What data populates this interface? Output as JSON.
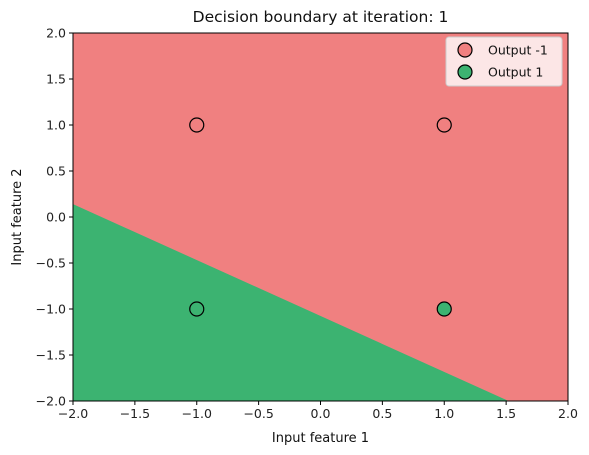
{
  "chart_data": {
    "type": "scatter",
    "title": "Decision boundary at iteration: 1",
    "xlabel": "Input feature 1",
    "ylabel": "Input feature 2",
    "xlim": [
      -2.0,
      2.0
    ],
    "ylim": [
      -2.0,
      2.0
    ],
    "xticks": [
      "−2.0",
      "−1.5",
      "−1.0",
      "−0.5",
      "0.0",
      "0.5",
      "1.0",
      "1.5",
      "2.0"
    ],
    "yticks": [
      "−2.0",
      "−1.5",
      "−1.0",
      "−0.5",
      "0.0",
      "0.5",
      "1.0",
      "1.5",
      "2.0"
    ],
    "xtick_values": [
      -2.0,
      -1.5,
      -1.0,
      -0.5,
      0.0,
      0.5,
      1.0,
      1.5,
      2.0
    ],
    "ytick_values": [
      -2.0,
      -1.5,
      -1.0,
      -0.5,
      0.0,
      0.5,
      1.0,
      1.5,
      2.0
    ],
    "decision_boundary": {
      "points": [
        [
          -2.0,
          0.14
        ],
        [
          1.52,
          -2.0
        ]
      ],
      "upper_region_class": "Output -1",
      "lower_region_class": "Output 1"
    },
    "series": [
      {
        "name": "Output -1",
        "color": "#f08080",
        "points": [
          [
            -1,
            1
          ],
          [
            1,
            1
          ]
        ]
      },
      {
        "name": "Output 1",
        "color": "#3cb371",
        "points": [
          [
            -1,
            -1
          ],
          [
            1,
            -1
          ]
        ]
      }
    ],
    "region_colors": {
      "Output -1": "#f08080",
      "Output 1": "#3cb371"
    },
    "marker_edge_color": "#000000",
    "legend_position": "top-right",
    "grid": false
  }
}
